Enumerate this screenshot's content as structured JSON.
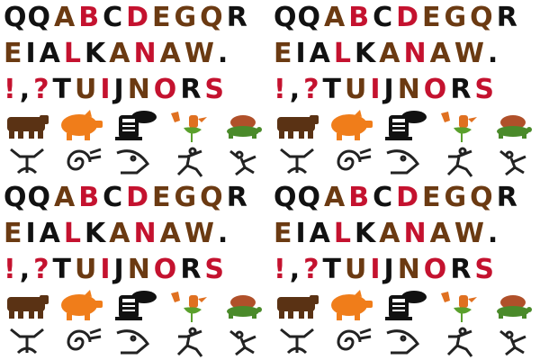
{
  "tile": {
    "rows": [
      {
        "glyphs": [
          {
            "ch": "QQ",
            "color": "#111111"
          },
          {
            "ch": "A",
            "color": "#6b3a12"
          },
          {
            "ch": "B",
            "color": "#c4122f"
          },
          {
            "ch": "C",
            "color": "#111111"
          },
          {
            "ch": "D",
            "color": "#c4122f"
          },
          {
            "ch": "E",
            "color": "#6b3a12"
          },
          {
            "ch": "G",
            "color": "#6b3a12"
          },
          {
            "ch": "Q",
            "color": "#6b3a12"
          },
          {
            "ch": "R",
            "color": "#111111"
          }
        ]
      },
      {
        "glyphs": [
          {
            "ch": "E",
            "color": "#6b3a12"
          },
          {
            "ch": "I",
            "color": "#111111"
          },
          {
            "ch": "A",
            "color": "#111111"
          },
          {
            "ch": "L",
            "color": "#c4122f"
          },
          {
            "ch": "K",
            "color": "#111111"
          },
          {
            "ch": "A",
            "color": "#6b3a12"
          },
          {
            "ch": "N",
            "color": "#c4122f"
          },
          {
            "ch": "A",
            "color": "#6b3a12"
          },
          {
            "ch": "W",
            "color": "#6b3a12"
          },
          {
            "ch": ".",
            "color": "#111111"
          }
        ]
      },
      {
        "glyphs": [
          {
            "ch": "!",
            "color": "#c4122f"
          },
          {
            "ch": ",",
            "color": "#111111"
          },
          {
            "ch": "?",
            "color": "#c4122f"
          },
          {
            "ch": "T",
            "color": "#111111"
          },
          {
            "ch": "U",
            "color": "#6b3a12"
          },
          {
            "ch": "I",
            "color": "#c4122f"
          },
          {
            "ch": "J",
            "color": "#111111"
          },
          {
            "ch": "N",
            "color": "#6b3a12"
          },
          {
            "ch": "O",
            "color": "#c4122f"
          },
          {
            "ch": "R",
            "color": "#111111"
          },
          {
            "ch": "S",
            "color": "#c4122f"
          }
        ]
      }
    ],
    "pictures": [
      {
        "icon": "bear-icon",
        "color": "#5a3214"
      },
      {
        "icon": "pig-icon",
        "color": "#f07d1a"
      },
      {
        "icon": "locomotive-icon",
        "color": "#111111"
      },
      {
        "icon": "rooster-icon",
        "color": "#e07020"
      },
      {
        "icon": "turtle-icon",
        "color": "#4a8a2a"
      }
    ],
    "petroglyphs": [
      {
        "icon": "spiral-figure-icon",
        "color": "#222222"
      },
      {
        "icon": "spiral-icon",
        "color": "#222222"
      },
      {
        "icon": "bird-head-icon",
        "color": "#222222"
      },
      {
        "icon": "dancer-icon",
        "color": "#222222"
      },
      {
        "icon": "kokopelli-icon",
        "color": "#222222"
      }
    ]
  }
}
